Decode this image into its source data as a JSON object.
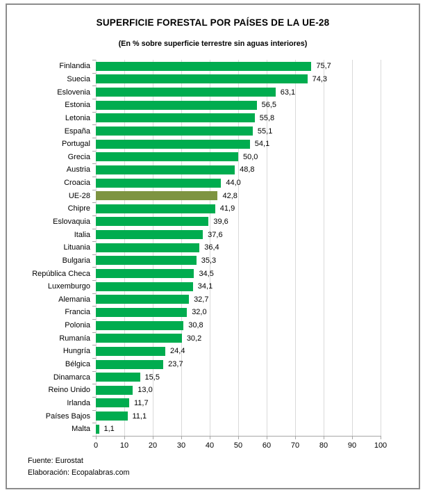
{
  "title": "SUPERFICIE FORESTAL POR PAÍSES DE LA UE-28",
  "subtitle": "(En % sobre superficie terrestre sin aguas interiores)",
  "footer": {
    "source": "Fuente: Eurostat",
    "elaboration": "Elaboración: Ecopalabras.com"
  },
  "colors": {
    "bar": "#00ac4f",
    "highlight_bar": "#7e9441",
    "gridline": "#d9d9d9",
    "axis": "#a6a6a6",
    "border": "#8c8c8c",
    "text": "#000000"
  },
  "chart_data": {
    "type": "bar",
    "orientation": "horizontal",
    "title": "SUPERFICIE FORESTAL POR PAÍSES DE LA UE-28",
    "subtitle": "(En % sobre superficie terrestre sin aguas interiores)",
    "xlabel": "",
    "ylabel": "",
    "xlim": [
      0,
      100
    ],
    "x_ticks": [
      0,
      10,
      20,
      30,
      40,
      50,
      60,
      70,
      80,
      90,
      100
    ],
    "grid": true,
    "highlight_category": "UE-28",
    "categories": [
      "Finlandia",
      "Suecia",
      "Eslovenia",
      "Estonia",
      "Letonia",
      "España",
      "Portugal",
      "Grecia",
      "Austria",
      "Croacia",
      "UE-28",
      "Chipre",
      "Eslovaquia",
      "Italia",
      "Lituania",
      "Bulgaria",
      "República Checa",
      "Luxemburgo",
      "Alemania",
      "Francia",
      "Polonia",
      "Rumanía",
      "Hungría",
      "Bélgica",
      "Dinamarca",
      "Reino Unido",
      "Irlanda",
      "Países Bajos",
      "Malta"
    ],
    "values": [
      75.7,
      74.3,
      63.1,
      56.5,
      55.8,
      55.1,
      54.1,
      50.0,
      48.8,
      44.0,
      42.8,
      41.9,
      39.6,
      37.6,
      36.4,
      35.3,
      34.5,
      34.1,
      32.7,
      32.0,
      30.8,
      30.2,
      24.4,
      23.7,
      15.5,
      13.0,
      11.7,
      11.1,
      1.1
    ],
    "value_labels": [
      "75,7",
      "74,3",
      "63,1",
      "56,5",
      "55,8",
      "55,1",
      "54,1",
      "50,0",
      "48,8",
      "44,0",
      "42,8",
      "41,9",
      "39,6",
      "37,6",
      "36,4",
      "35,3",
      "34,5",
      "34,1",
      "32,7",
      "32,0",
      "30,8",
      "30,2",
      "24,4",
      "23,7",
      "15,5",
      "13,0",
      "11,7",
      "11,1",
      "1,1"
    ]
  }
}
